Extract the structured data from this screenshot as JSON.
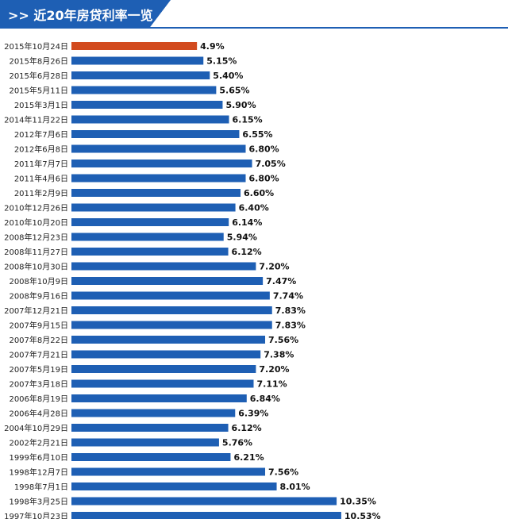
{
  "header": {
    "title": ">> 近20年房贷利率一览"
  },
  "colors": {
    "accent": "#1e5fb4",
    "highlight": "#d24a1e"
  },
  "chart_data": {
    "type": "bar",
    "orientation": "horizontal",
    "title": "近20年房贷利率一览",
    "highlight_index": 0,
    "categories": [
      "2015年10月24日",
      "2015年8月26日",
      "2015年6月28日",
      "2015年5月11日",
      "2015年3月1日",
      "2014年11月22日",
      "2012年7月6日",
      "2012年6月8日",
      "2011年7月7日",
      "2011年4月6日",
      "2011年2月9日",
      "2010年12月26日",
      "2010年10月20日",
      "2008年12月23日",
      "2008年11月27日",
      "2008年10月30日",
      "2008年10月9日",
      "2008年9月16日",
      "2007年12月21日",
      "2007年9月15日",
      "2007年8月22日",
      "2007年7月21日",
      "2007年5月19日",
      "2007年3月18日",
      "2006年8月19日",
      "2006年4月28日",
      "2004年10月29日",
      "2002年2月21日",
      "1999年6月10日",
      "1998年12月7日",
      "1998年7月1日",
      "1998年3月25日",
      "1997年10月23日"
    ],
    "values": [
      4.9,
      5.15,
      5.4,
      5.65,
      5.9,
      6.15,
      6.55,
      6.8,
      7.05,
      6.8,
      6.6,
      6.4,
      6.14,
      5.94,
      6.12,
      7.2,
      7.47,
      7.74,
      7.83,
      7.83,
      7.56,
      7.38,
      7.2,
      7.11,
      6.84,
      6.39,
      6.12,
      5.76,
      6.21,
      7.56,
      8.01,
      10.35,
      10.53
    ],
    "value_labels": [
      "4.9%",
      "5.15%",
      "5.40%",
      "5.65%",
      "5.90%",
      "6.15%",
      "6.55%",
      "6.80%",
      "7.05%",
      "6.80%",
      "6.60%",
      "6.40%",
      "6.14%",
      "5.94%",
      "6.12%",
      "7.20%",
      "7.47%",
      "7.74%",
      "7.83%",
      "7.83%",
      "7.56%",
      "7.38%",
      "7.20%",
      "7.11%",
      "6.84%",
      "6.39%",
      "6.12%",
      "5.76%",
      "6.21%",
      "7.56%",
      "8.01%",
      "10.35%",
      "10.53%"
    ],
    "xlim": [
      0,
      10.53
    ],
    "grid": false,
    "legend": "none"
  }
}
